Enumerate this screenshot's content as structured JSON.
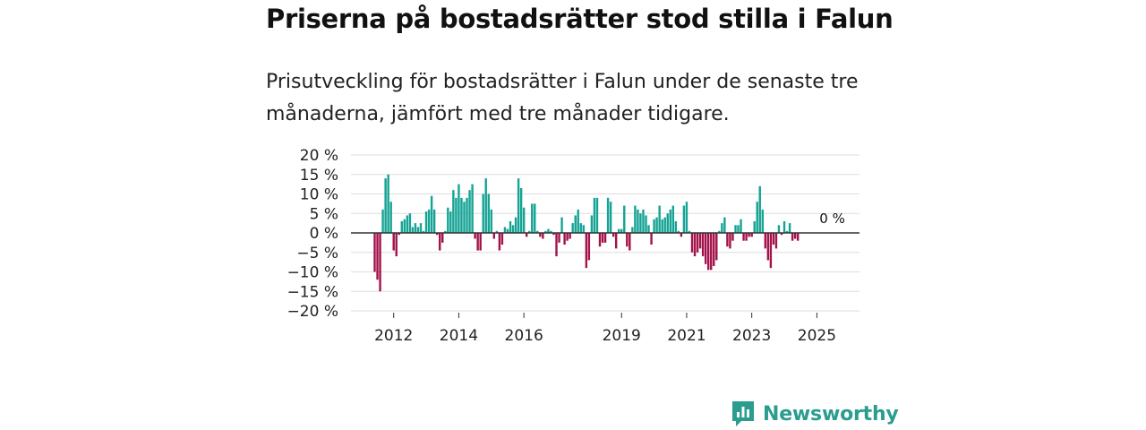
{
  "title": "Priserna på bostadsrätter stod stilla i Falun",
  "subtitle": "Prisutveckling för bostadsrätter i Falun under de senaste tre månaderna, jämfört med tre månader tidigare.",
  "brand": "Newsworthy",
  "colors": {
    "positive": "#14a394",
    "negative": "#a3124a",
    "grid": "#dddddd",
    "zero": "#333333",
    "brand": "#2a9d8f"
  },
  "chart_data": {
    "type": "bar",
    "unit": "%",
    "ylim": [
      -20,
      20
    ],
    "yticks": [
      20,
      15,
      10,
      5,
      0,
      -5,
      -10,
      -15,
      -20
    ],
    "ytick_labels": [
      "20 %",
      "15 %",
      "10 %",
      "5 %",
      "0 %",
      "−5 %",
      "−10 %",
      "−15 %",
      "−20 %"
    ],
    "xticks": [
      {
        "label": "2012",
        "index": 7
      },
      {
        "label": "2014",
        "index": 31
      },
      {
        "label": "2016",
        "index": 55
      },
      {
        "label": "2019",
        "index": 91
      },
      {
        "label": "2021",
        "index": 115
      },
      {
        "label": "2023",
        "index": 139
      },
      {
        "label": "2025",
        "index": 163
      }
    ],
    "start": "2011-08",
    "annotation": {
      "label": "0 %",
      "index": 170,
      "value": 0
    },
    "values": [
      -10,
      -12,
      -15,
      6,
      14,
      15,
      8,
      -4.5,
      -6,
      -0.5,
      3,
      3.5,
      4.5,
      5,
      1.5,
      2.5,
      1.5,
      2.5,
      0.5,
      5.5,
      6,
      9.5,
      6,
      -0.5,
      -4.5,
      -2.5,
      0.5,
      6.5,
      5.5,
      11,
      9,
      12.5,
      9,
      8,
      9,
      11,
      12.5,
      -1.5,
      -4.5,
      -4.5,
      10,
      14,
      10,
      6,
      -1.5,
      0.5,
      -4.5,
      -3,
      1.5,
      1,
      3,
      2,
      4,
      14,
      11.5,
      6.5,
      -1,
      0.5,
      7.5,
      7.5,
      0.5,
      -1,
      -1.5,
      0.5,
      1,
      0.5,
      -0.5,
      -6,
      -2.5,
      4,
      -3,
      -2,
      -1.5,
      2.5,
      4.5,
      6,
      2.5,
      2,
      -9,
      -7,
      4.5,
      9,
      9,
      -3.5,
      -2.5,
      -2.5,
      9,
      8,
      -1,
      -4,
      1,
      1,
      7,
      -3.5,
      -4.5,
      1.5,
      7,
      6,
      5,
      6,
      4.5,
      2,
      -3,
      3.5,
      4,
      7,
      3.5,
      4,
      5,
      6,
      7,
      3,
      0.5,
      -1,
      7,
      8,
      0.5,
      -5,
      -6,
      -5,
      -4,
      -6,
      -8,
      -9.5,
      -9.5,
      -8.5,
      -7,
      0.5,
      2.5,
      4,
      -3.5,
      -4,
      -2,
      2,
      2,
      3.5,
      -2,
      -2,
      -1,
      -1,
      3,
      8,
      12,
      6,
      -4,
      -7,
      -9,
      -3,
      -4,
      2,
      -0.5,
      3,
      0.5,
      2.5,
      -2,
      -1.5,
      -2
    ]
  }
}
